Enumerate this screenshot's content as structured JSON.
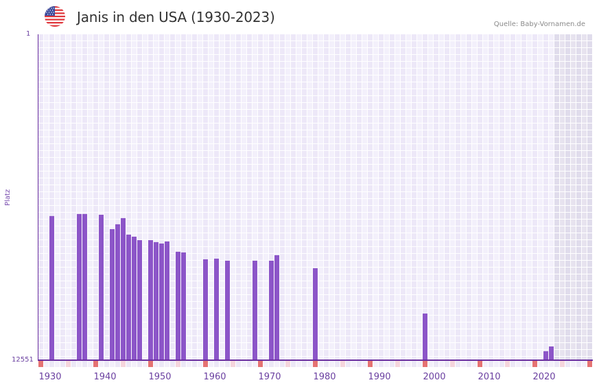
{
  "header": {
    "title": "Janis in den USA (1930-2023)",
    "source": "Quelle: Baby-Vornamen.de",
    "flag_icon": "us-flag-icon"
  },
  "axes": {
    "ylabel": "Platz",
    "ytick_top": "1",
    "ytick_bottom": "12551",
    "xticks": [
      "1930",
      "1940",
      "1950",
      "1960",
      "1970",
      "1980",
      "1990",
      "2000",
      "2010",
      "2020"
    ]
  },
  "colors": {
    "bar": "#8c55c8",
    "axis": "#6a2f9f",
    "cell_a": "#ede8f8",
    "cell_b": "#f3f0fb",
    "cell_future_a": "#e0dcec",
    "cell_future_b": "#e7e3ef",
    "marker_decade": "#e57373",
    "marker_half": "#f5d5dc",
    "marker_a": "#ece8f6",
    "marker_b": "#f3f0fa"
  },
  "chart_data": {
    "type": "bar",
    "title": "Janis in den USA (1930-2023)",
    "xlabel": "",
    "ylabel": "Platz",
    "y_scale": "log",
    "y_inverted": true,
    "ylim": [
      1,
      12551
    ],
    "xlim": [
      1928,
      2028
    ],
    "future_shaded_from": 2022,
    "x": [
      1930,
      1935,
      1936,
      1939,
      1941,
      1942,
      1943,
      1944,
      1945,
      1946,
      1948,
      1949,
      1950,
      1951,
      1953,
      1954,
      1958,
      1960,
      1962,
      1967,
      1970,
      1971,
      1978,
      1998,
      2020,
      2021
    ],
    "values": [
      193,
      182,
      182,
      186,
      282,
      245,
      205,
      331,
      351,
      388,
      388,
      411,
      428,
      403,
      543,
      554,
      676,
      663,
      703,
      703,
      703,
      600,
      875,
      3250,
      9680,
      8430
    ],
    "source": "Quelle: Baby-Vornamen.de"
  }
}
